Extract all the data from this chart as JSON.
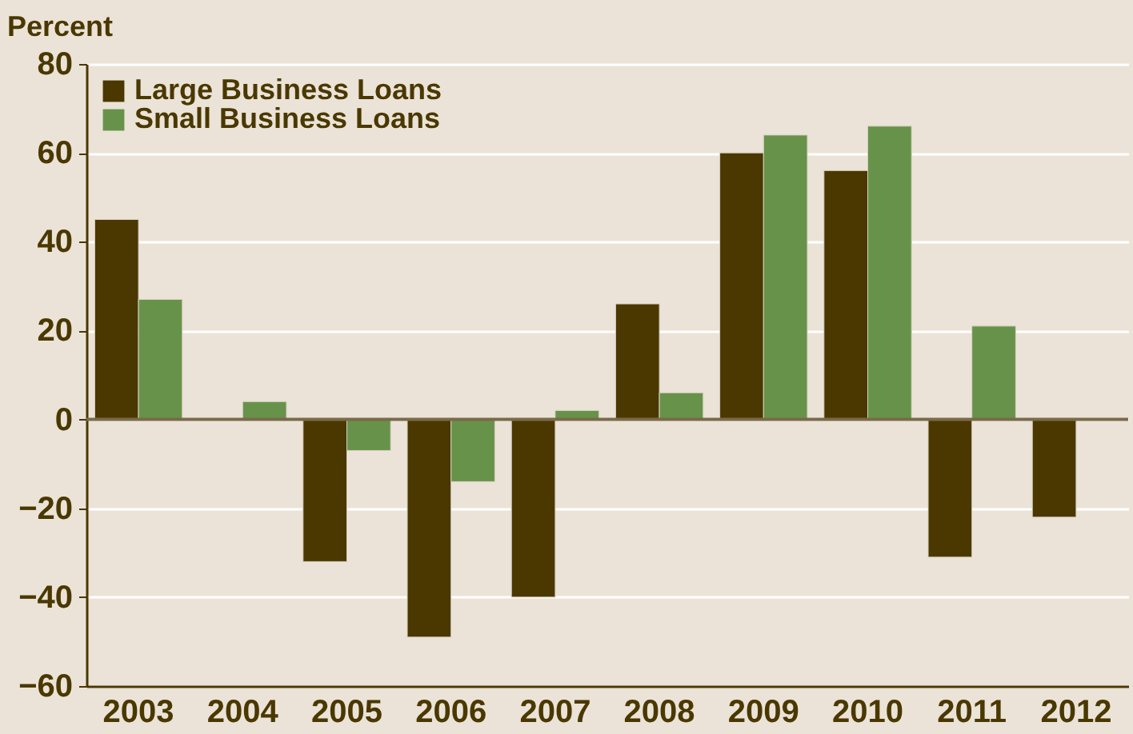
{
  "chart_data": {
    "type": "bar",
    "ylabel": "Percent",
    "categories": [
      "2003",
      "2004",
      "2005",
      "2006",
      "2007",
      "2008",
      "2009",
      "2010",
      "2011",
      "2012"
    ],
    "series": [
      {
        "name": "Large Business Loans",
        "color": "#4a3800",
        "values": [
          45,
          null,
          -32,
          -49,
          -40,
          26,
          60,
          56,
          -31,
          -22
        ]
      },
      {
        "name": "Small Business Loans",
        "color": "#67924a",
        "values": [
          27,
          4,
          -7,
          -14,
          2,
          6,
          64,
          66,
          21,
          null
        ]
      }
    ],
    "ref_lines": [
      {
        "axis": "y",
        "value": 0,
        "color": "#7a6a4a"
      }
    ],
    "ylim": [
      -60,
      80
    ],
    "yticks": [
      -60,
      -40,
      -20,
      0,
      20,
      40,
      60,
      80
    ],
    "grid": "y",
    "legend": "top left"
  }
}
